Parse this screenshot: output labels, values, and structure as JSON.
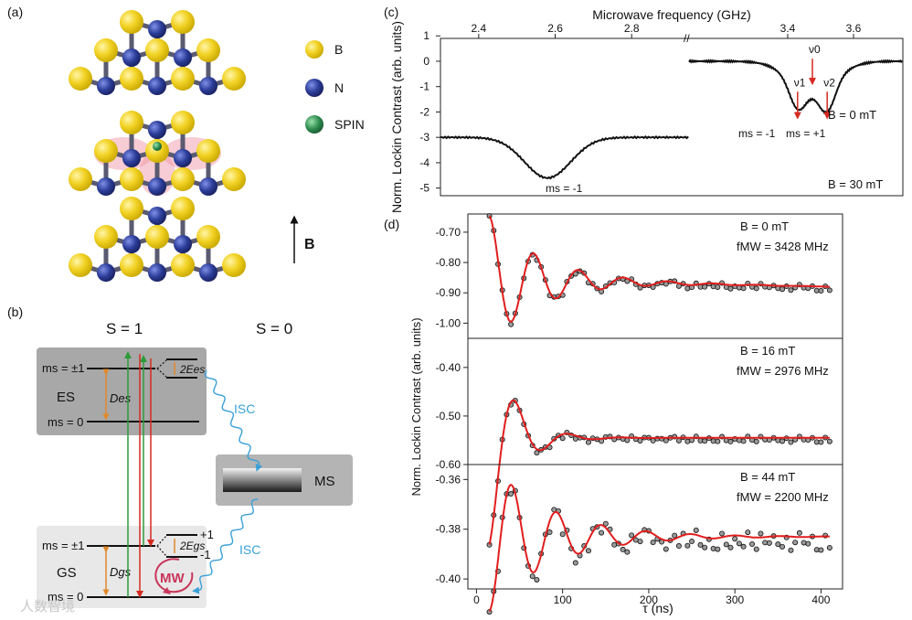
{
  "panels": {
    "a": "(a)",
    "b": "(b)",
    "c": "(c)",
    "d": "(d)"
  },
  "crystal": {
    "legend": [
      {
        "label": "B",
        "color": "#f2d224"
      },
      {
        "label": "N",
        "color": "#2c3e9a"
      },
      {
        "label": "SPIN",
        "color": "#2e8b4e"
      }
    ],
    "b_field": "B"
  },
  "levels": {
    "s1_title": "S = 1",
    "s0_title": "S = 0",
    "es": {
      "label": "ES",
      "ms_pm1": "ms = ±1",
      "ms_0": "ms = 0",
      "D": "Des",
      "E": "2Ees"
    },
    "gs": {
      "label": "GS",
      "ms_pm1": "ms = ±1",
      "ms_0": "ms = 0",
      "D": "Dgs",
      "E": "2Egs",
      "plus": "+1",
      "minus": "-1"
    },
    "ms_box": "MS",
    "isc": "ISC",
    "mw": "MW",
    "watermark": "人数智境"
  },
  "chart_data": [
    {
      "type": "line",
      "title": "Microwave frequency (GHz)",
      "ylabel": "Norm. Lockin Contrast (arb. units)",
      "ylim": [
        -5.3,
        0.9
      ],
      "y_ticks": [
        "1",
        "0",
        "-1",
        "-2",
        "-3",
        "-4",
        "-5"
      ],
      "segment_low": {
        "xlim": [
          2.3,
          2.95
        ],
        "x_ticks": [
          "2.4",
          "2.6",
          "2.8"
        ],
        "center": 2.58,
        "baseline": -3.0,
        "depth": -4.6,
        "annotation": "ms = -1",
        "condition": "B = 30 mT"
      },
      "segment_high": {
        "xlim": [
          3.1,
          3.75
        ],
        "x_ticks": [
          "3.4",
          "3.6"
        ],
        "baseline": 0.0,
        "dips": [
          3.43,
          3.52
        ],
        "annotation_left": "ms = -1",
        "annotation_right": "ms = +1",
        "arrows": [
          "ν1",
          "ν0",
          "ν2"
        ],
        "condition": "B =   0 mT"
      }
    },
    {
      "type": "scatter",
      "xlabel": "τ   (ns)",
      "ylabel": "Norm. Lockin Contrast (arb. units)",
      "xlim": [
        -10,
        425
      ],
      "x_ticks": [
        "0",
        "100",
        "200",
        "300",
        "400"
      ],
      "series": [
        {
          "name": "B = 0 mT",
          "field": "B =   0 mT",
          "freq": "fMW = 3428 MHz",
          "ylim": [
            -1.05,
            -0.64
          ],
          "y_ticks": [
            "-0.70",
            "-0.80",
            "-0.90",
            "-1.00"
          ],
          "baseline": -0.855,
          "amplitude": -0.21,
          "decay_ns": 60,
          "period_ns": 52,
          "phase_shift": 0.0,
          "slope": -6e-05
        },
        {
          "name": "B = 16 mT",
          "field": "B =  16 mT",
          "freq": "fMW = 2976 MHz",
          "ylim": [
            -0.6,
            -0.34
          ],
          "y_ticks": [
            "-0.40",
            "-0.50",
            "-0.60"
          ],
          "baseline": -0.545,
          "amplitude": 0.22,
          "decay_ns": 28,
          "period_ns": 62,
          "phase_shift": 0.0,
          "slope": 0.0
        },
        {
          "name": "B = 44 mT",
          "field": "B =  44 mT",
          "freq": "fMW = 2200 MHz",
          "ylim": [
            -0.404,
            -0.354
          ],
          "y_ticks": [
            "-0.36",
            "-0.38",
            "-0.40"
          ],
          "baseline": -0.383,
          "amplitude": 0.03,
          "decay_ns": 70,
          "period_ns": 52,
          "phase_shift": 0.0,
          "slope": 0.0
        }
      ]
    }
  ]
}
